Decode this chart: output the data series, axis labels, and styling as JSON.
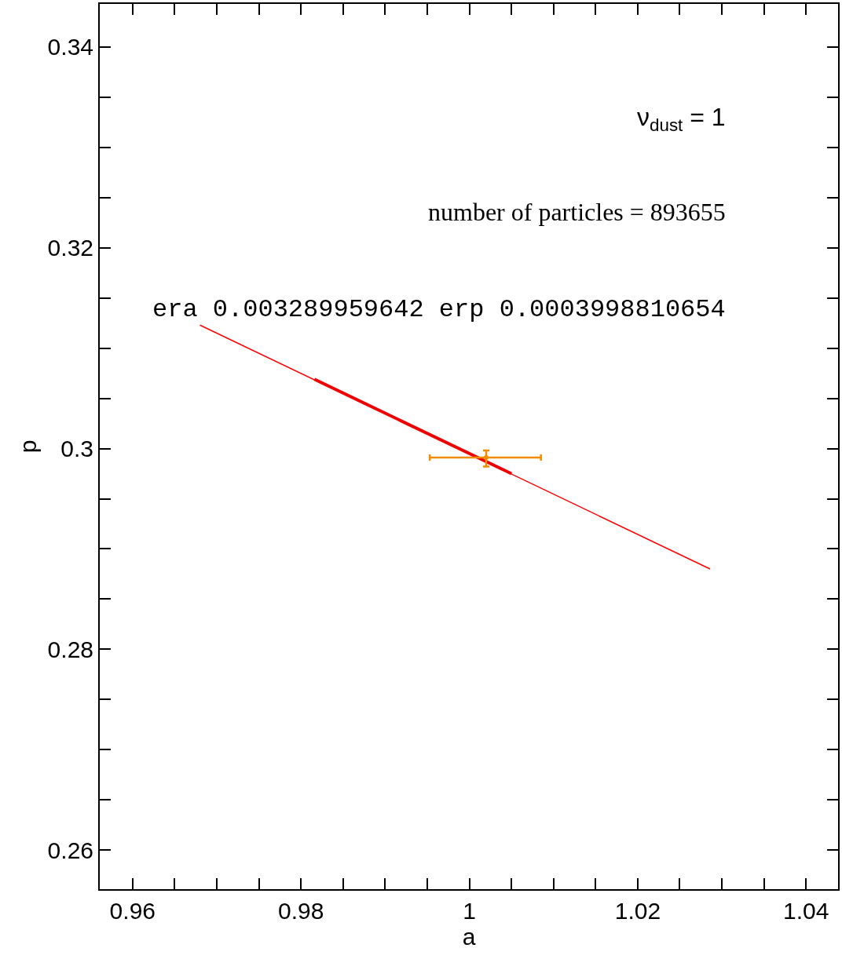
{
  "chart_data": {
    "type": "line",
    "xlabel": "a",
    "ylabel": "p",
    "xlim": [
      0.9561,
      1.0438
    ],
    "ylim": [
      0.2561,
      0.3443
    ],
    "xticks": [
      0.96,
      {
        "value": 0.965,
        "label": null
      },
      {
        "value": 0.97,
        "label": null
      },
      {
        "value": 0.975,
        "label": null
      },
      0.98,
      {
        "value": 0.985,
        "label": null
      },
      {
        "value": 0.99,
        "label": null
      },
      {
        "value": 0.995,
        "label": null
      },
      1,
      {
        "value": 1.005,
        "label": null
      },
      {
        "value": 1.01,
        "label": null
      },
      {
        "value": 1.015,
        "label": null
      },
      1.02,
      {
        "value": 1.025,
        "label": null
      },
      {
        "value": 1.03,
        "label": null
      },
      {
        "value": 1.035,
        "label": null
      },
      1.04
    ],
    "yticks": [
      {
        "value": 0.26,
        "label": "0.26"
      },
      {
        "value": 0.265,
        "label": null
      },
      {
        "value": 0.27,
        "label": null
      },
      {
        "value": 0.275,
        "label": null
      },
      {
        "value": 0.28,
        "label": "0.28"
      },
      {
        "value": 0.285,
        "label": null
      },
      {
        "value": 0.29,
        "label": null
      },
      {
        "value": 0.295,
        "label": null
      },
      {
        "value": 0.3,
        "label": "0.3"
      },
      {
        "value": 0.305,
        "label": null
      },
      {
        "value": 0.31,
        "label": null
      },
      {
        "value": 0.315,
        "label": null
      },
      {
        "value": 0.32,
        "label": "0.32"
      },
      {
        "value": 0.325,
        "label": null
      },
      {
        "value": 0.33,
        "label": null
      },
      {
        "value": 0.335,
        "label": null
      },
      {
        "value": 0.34,
        "label": "0.34"
      }
    ],
    "marker": "none",
    "line_style": "solid",
    "series": [
      {
        "color": "#ff0000",
        "x": [
          0.968,
          1.0286
        ],
        "values": [
          0.3123,
          0.288
        ]
      },
      {
        "color": "#ee0000",
        "x": [
          0.9816,
          1.005
        ],
        "values": [
          0.3069,
          0.2975
        ]
      },
      {
        "type": "scatter",
        "color": "#f08c00",
        "x": [
          1.002
        ],
        "values": [
          0.2991
        ],
        "errors": [
          [
            0.2982,
            0.2998
          ]
        ],
        "xerrors": [
          [
            0.9953,
            1.0085
          ]
        ]
      }
    ],
    "annotations": [
      "ν$_{dust}$ = 1",
      "number of particles = 893655",
      "era 0.003289959642 erp 0.0003998810654"
    ]
  }
}
